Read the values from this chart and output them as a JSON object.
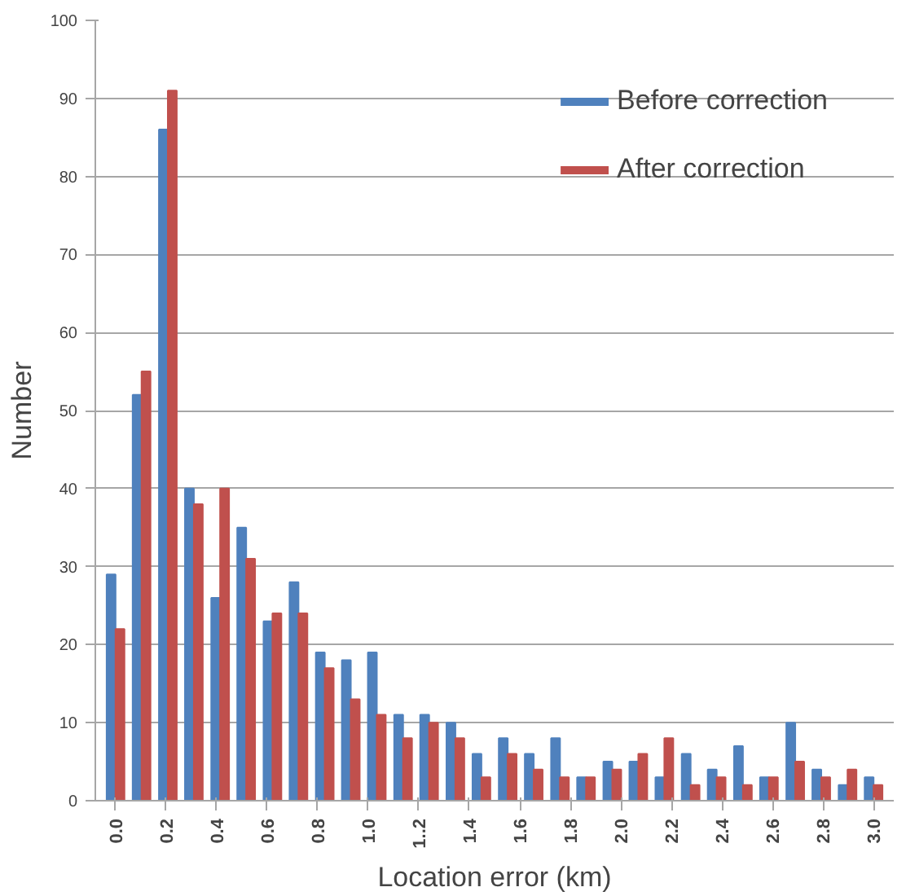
{
  "chart_data": {
    "type": "bar",
    "xlabel": "Location error (km)",
    "ylabel": "Number",
    "x": [
      0.0,
      0.103,
      0.207,
      0.31,
      0.414,
      0.517,
      0.621,
      0.724,
      0.828,
      0.931,
      1.034,
      1.138,
      1.241,
      1.345,
      1.448,
      1.552,
      1.655,
      1.759,
      1.862,
      1.966,
      2.069,
      2.172,
      2.276,
      2.379,
      2.483,
      2.586,
      2.69,
      2.793,
      2.897,
      3.0
    ],
    "series": [
      {
        "name": "Before correction",
        "color": "#4f81bd",
        "values": [
          29,
          52,
          86,
          40,
          26,
          35,
          23,
          28,
          19,
          18,
          19,
          11,
          11,
          10,
          6,
          8,
          6,
          8,
          3,
          5,
          5,
          3,
          6,
          4,
          7,
          3,
          10,
          4,
          2,
          3
        ]
      },
      {
        "name": "After correction",
        "color": "#c0504d",
        "values": [
          22,
          55,
          91,
          38,
          40,
          31,
          24,
          24,
          17,
          13,
          11,
          8,
          10,
          8,
          3,
          6,
          4,
          3,
          3,
          4,
          6,
          8,
          2,
          3,
          2,
          3,
          5,
          3,
          4,
          2
        ]
      }
    ],
    "xlim": [
      -0.08,
      3.08
    ],
    "xticks": [
      {
        "value": 0.0,
        "label": "0.0"
      },
      {
        "value": 0.2,
        "label": "0.2"
      },
      {
        "value": 0.4,
        "label": "0.4"
      },
      {
        "value": 0.6,
        "label": "0.6"
      },
      {
        "value": 0.8,
        "label": "0.8"
      },
      {
        "value": 1.0,
        "label": "1.0"
      },
      {
        "value": 1.2,
        "label": "1..2"
      },
      {
        "value": 1.4,
        "label": "1.4"
      },
      {
        "value": 1.6,
        "label": "1.6"
      },
      {
        "value": 1.8,
        "label": "1.8"
      },
      {
        "value": 2.0,
        "label": "2.0"
      },
      {
        "value": 2.2,
        "label": "2.2"
      },
      {
        "value": 2.4,
        "label": "2.4"
      },
      {
        "value": 2.6,
        "label": "2.6"
      },
      {
        "value": 2.8,
        "label": "2.8"
      },
      {
        "value": 3.0,
        "label": "3.0"
      }
    ],
    "ylim": [
      0,
      100
    ],
    "yticks": [
      0,
      10,
      20,
      30,
      40,
      50,
      60,
      70,
      80,
      90,
      100
    ],
    "grid": "y",
    "legend": "top right"
  }
}
